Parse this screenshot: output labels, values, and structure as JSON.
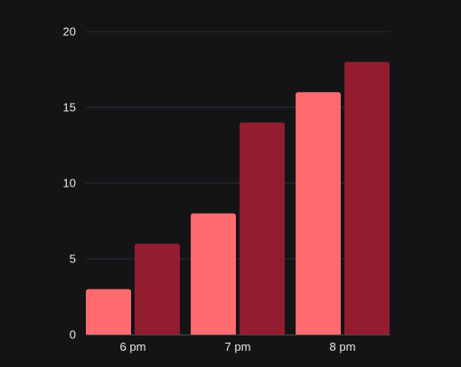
{
  "chart_data": {
    "type": "bar",
    "title": "",
    "xlabel": "",
    "ylabel": "",
    "categories": [
      "6 pm",
      "7 pm",
      "8 pm"
    ],
    "series": [
      {
        "values": [
          3,
          8,
          16
        ],
        "color": "#ff6b6e"
      },
      {
        "values": [
          6,
          14,
          18
        ],
        "color": "#921d2e"
      }
    ],
    "ylim": [
      0,
      20
    ],
    "yticks": [
      0,
      5,
      10,
      15,
      20
    ],
    "grid": true,
    "legend": "none",
    "colors": {
      "background": "#141417",
      "grid": "#2e2e33",
      "axis": "#4a4a50",
      "text": "#e8e8ea"
    }
  }
}
